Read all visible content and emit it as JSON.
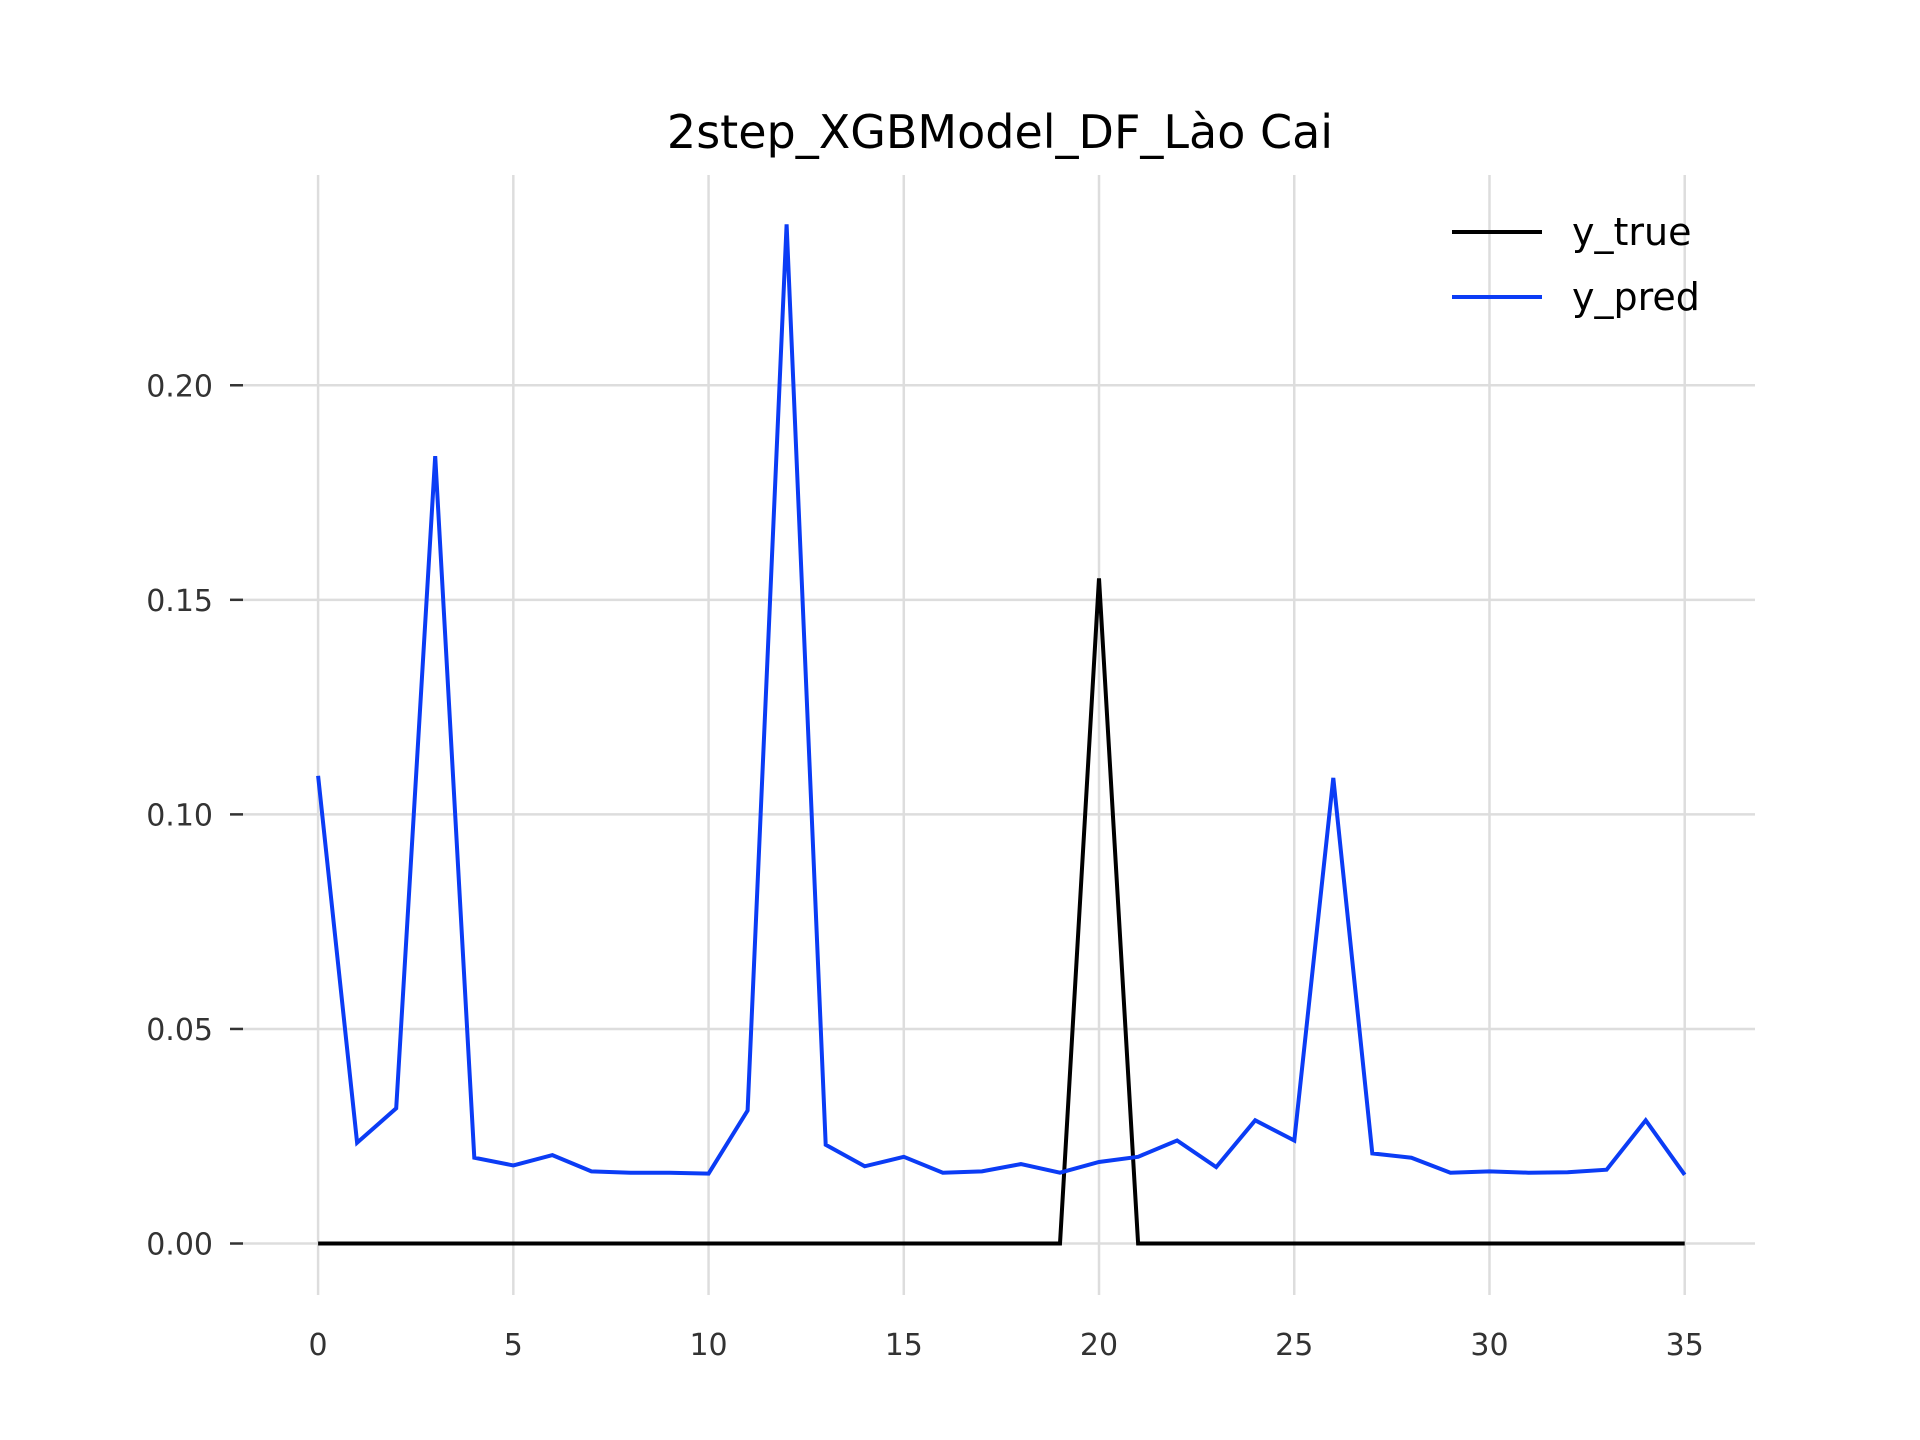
{
  "chart_data": {
    "type": "line",
    "title": "2step_XGBModel_DF_Lào Cai",
    "xlabel": "",
    "ylabel": "",
    "xlim": [
      -2,
      36.8
    ],
    "ylim": [
      -0.012,
      0.249
    ],
    "x_ticks": [
      0,
      5,
      10,
      15,
      20,
      25,
      30,
      35
    ],
    "x_tick_labels": [
      "0",
      "5",
      "10",
      "15",
      "20",
      "25",
      "30",
      "35"
    ],
    "y_ticks": [
      0.0,
      0.05,
      0.1,
      0.15,
      0.2
    ],
    "y_tick_labels": [
      "0.00",
      "0.05",
      "0.10",
      "0.15",
      "0.20"
    ],
    "grid": true,
    "legend_position": "top-right",
    "x": [
      0,
      1,
      2,
      3,
      4,
      5,
      6,
      7,
      8,
      9,
      10,
      11,
      12,
      13,
      14,
      15,
      16,
      17,
      18,
      19,
      20,
      21,
      22,
      23,
      24,
      25,
      26,
      27,
      28,
      29,
      30,
      31,
      32,
      33,
      34,
      35
    ],
    "series": [
      {
        "name": "y_true",
        "color": "#000000",
        "values": [
          0,
          0,
          0,
          0,
          0,
          0,
          0,
          0,
          0,
          0,
          0,
          0,
          0,
          0,
          0,
          0,
          0,
          0,
          0,
          0,
          0.155,
          0,
          0,
          0,
          0,
          0,
          0,
          0,
          0,
          0,
          0,
          0,
          0,
          0,
          0,
          0
        ]
      },
      {
        "name": "y_pred",
        "color": "#0b3cf5",
        "values": [
          0.109,
          0.0235,
          0.0315,
          0.1835,
          0.02,
          0.0182,
          0.0206,
          0.0168,
          0.0165,
          0.0165,
          0.0163,
          0.031,
          0.2375,
          0.023,
          0.018,
          0.0202,
          0.0165,
          0.0168,
          0.0185,
          0.0165,
          0.019,
          0.0202,
          0.024,
          0.0178,
          0.0287,
          0.024,
          0.1085,
          0.021,
          0.02,
          0.0165,
          0.0168,
          0.0165,
          0.0166,
          0.0172,
          0.0287,
          0.016
        ]
      }
    ]
  }
}
